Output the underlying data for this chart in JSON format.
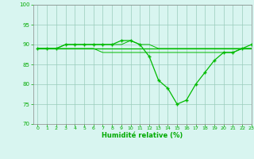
{
  "x": [
    0,
    1,
    2,
    3,
    4,
    5,
    6,
    7,
    8,
    9,
    10,
    11,
    12,
    13,
    14,
    15,
    16,
    17,
    18,
    19,
    20,
    21,
    22,
    23
  ],
  "line_flat": [
    89,
    89,
    89,
    89,
    89,
    89,
    89,
    89,
    89,
    89,
    89,
    89,
    89,
    89,
    89,
    89,
    89,
    89,
    89,
    89,
    89,
    89,
    89,
    89
  ],
  "line_main": [
    89,
    89,
    89,
    90,
    90,
    90,
    90,
    90,
    90,
    91,
    91,
    90,
    87,
    81,
    79,
    75,
    76,
    80,
    83,
    86,
    88,
    88,
    89,
    90
  ],
  "line_up": [
    89,
    89,
    89,
    90,
    90,
    90,
    90,
    90,
    90,
    90,
    91,
    90,
    90,
    89,
    89,
    89,
    89,
    89,
    89,
    89,
    89,
    89,
    89,
    89
  ],
  "line_down": [
    89,
    89,
    89,
    89,
    89,
    89,
    89,
    88,
    88,
    88,
    88,
    88,
    88,
    88,
    88,
    88,
    88,
    88,
    88,
    88,
    88,
    88,
    89,
    89
  ],
  "xlabel": "Humidité relative (%)",
  "ylim": [
    70,
    100
  ],
  "xlim": [
    -0.5,
    23
  ],
  "yticks": [
    70,
    75,
    80,
    85,
    90,
    95,
    100
  ],
  "xticks": [
    0,
    1,
    2,
    3,
    4,
    5,
    6,
    7,
    8,
    9,
    10,
    11,
    12,
    13,
    14,
    15,
    16,
    17,
    18,
    19,
    20,
    21,
    22,
    23
  ],
  "line_color": "#00bb00",
  "bg_color": "#d8f5f0",
  "grid_color": "#99ccbb",
  "tick_color": "#00aa00",
  "label_color": "#00aa00"
}
